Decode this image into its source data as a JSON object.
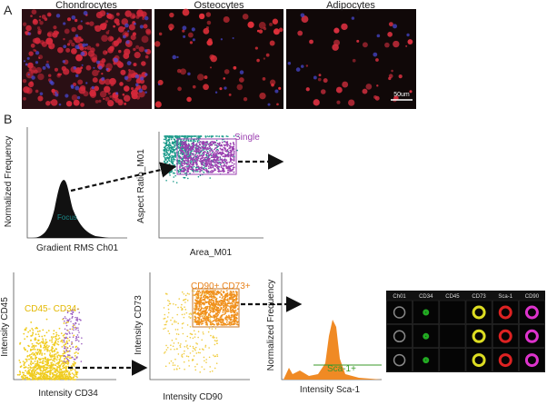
{
  "panel_a": {
    "label": "A",
    "images": [
      {
        "title": "Chondrocytes"
      },
      {
        "title": "Osteocytes"
      },
      {
        "title": "Adipocytes"
      }
    ],
    "scale_bar": "50um"
  },
  "panel_b": {
    "label": "B",
    "plots": [
      {
        "y_label": "Normalized Frequency",
        "x_label": "Gradient RMS Ch01",
        "gate": "Focus"
      },
      {
        "y_label": "Aspect Ratio_M01",
        "x_label": "Area_M01",
        "gate": "Single"
      },
      {
        "y_label": "Intensity CD45",
        "x_label": "Intensity CD34",
        "gate": "CD45- CD34-"
      },
      {
        "y_label": "Intensity CD73",
        "x_label": "Intensity CD90",
        "gate": "CD90+ CD73+"
      },
      {
        "y_label": "Normalized Frequency",
        "x_label": "Intensity Sca-1",
        "gate": "Sca-1+"
      }
    ],
    "image_strip": {
      "columns": [
        "Ch01",
        "CD34",
        "CD45",
        "CD73",
        "Sca-1",
        "CD90"
      ]
    }
  }
}
